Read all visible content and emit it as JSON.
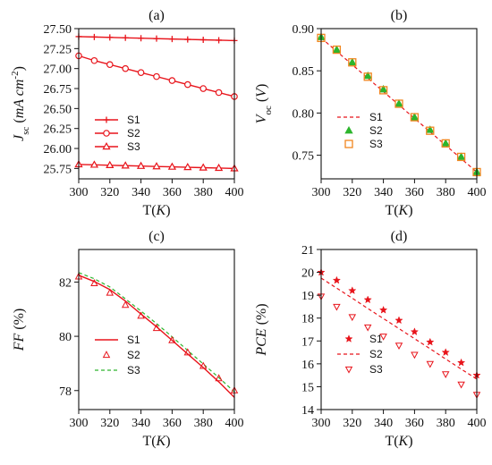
{
  "chart_data": [
    {
      "id": "a",
      "type": "line",
      "panel_label": "(a)",
      "xlabel": "T(K)",
      "xlabel_parts": [
        [
          "T(",
          "normal"
        ],
        [
          "K",
          "italic"
        ],
        [
          ")",
          "normal"
        ]
      ],
      "ylabel": "Jsc (mA cm-2)",
      "ylabel_parts": [
        [
          "J",
          "italic"
        ],
        [
          "sc",
          "sub"
        ],
        [
          " (",
          "normal"
        ],
        [
          "mA cm",
          "italic"
        ],
        [
          "-2",
          "sup"
        ],
        [
          ")",
          "normal"
        ]
      ],
      "xlim": [
        300,
        400
      ],
      "ylim": [
        25.62,
        27.5
      ],
      "xticks": [
        300,
        320,
        340,
        360,
        380,
        400
      ],
      "yticks": [
        25.75,
        26.0,
        26.25,
        26.5,
        26.75,
        27.0,
        27.25,
        27.5
      ],
      "ytick_labels": [
        "25.75",
        "26.00",
        "26.25",
        "26.50",
        "26.75",
        "27.00",
        "27.25",
        "27.50"
      ],
      "legend_position": "lower-left",
      "x": [
        300,
        310,
        320,
        330,
        340,
        350,
        360,
        370,
        380,
        390,
        400
      ],
      "series": [
        {
          "name": "S1",
          "style": "line-marker",
          "marker": "plus",
          "color": "#e8141b",
          "values": [
            27.4,
            27.395,
            27.39,
            27.385,
            27.38,
            27.375,
            27.37,
            27.365,
            27.36,
            27.355,
            27.35
          ]
        },
        {
          "name": "S2",
          "style": "line-marker",
          "marker": "circle",
          "color": "#e8141b",
          "values": [
            27.16,
            27.1,
            27.05,
            27.0,
            26.95,
            26.9,
            26.85,
            26.8,
            26.75,
            26.7,
            26.65
          ]
        },
        {
          "name": "S3",
          "style": "line-marker",
          "marker": "triangle",
          "color": "#e8141b",
          "values": [
            25.8,
            25.795,
            25.79,
            25.785,
            25.78,
            25.775,
            25.77,
            25.765,
            25.76,
            25.755,
            25.75
          ]
        }
      ]
    },
    {
      "id": "b",
      "type": "line",
      "panel_label": "(b)",
      "xlabel": "T(K)",
      "xlabel_parts": [
        [
          "T(",
          "normal"
        ],
        [
          "K",
          "italic"
        ],
        [
          ")",
          "normal"
        ]
      ],
      "ylabel": "Voc (V)",
      "ylabel_parts": [
        [
          "V",
          "italic"
        ],
        [
          "oc",
          "sub"
        ],
        [
          " (",
          "normal"
        ],
        [
          "V",
          "italic"
        ],
        [
          ")",
          "normal"
        ]
      ],
      "xlim": [
        300,
        400
      ],
      "ylim": [
        0.722,
        0.9
      ],
      "xticks": [
        300,
        320,
        340,
        360,
        380,
        400
      ],
      "yticks": [
        0.75,
        0.8,
        0.85,
        0.9
      ],
      "ytick_labels": [
        "0.75",
        "0.80",
        "0.85",
        "0.90"
      ],
      "legend_position": "lower-left",
      "x": [
        300,
        310,
        320,
        330,
        340,
        350,
        360,
        370,
        380,
        390,
        400
      ],
      "series": [
        {
          "name": "S1",
          "style": "dashed-line",
          "color": "#e8141b",
          "values": [
            0.889,
            0.8731,
            0.8572,
            0.8413,
            0.8254,
            0.8095,
            0.7936,
            0.7777,
            0.7618,
            0.7459,
            0.73
          ]
        },
        {
          "name": "S2",
          "style": "marker",
          "marker": "triangle-filled",
          "color": "#2db52d",
          "values": [
            0.89,
            0.875,
            0.86,
            0.844,
            0.828,
            0.811,
            0.795,
            0.78,
            0.764,
            0.748,
            0.73
          ]
        },
        {
          "name": "S3",
          "style": "marker",
          "marker": "square-open",
          "color": "#f0861e",
          "values": [
            0.889,
            0.875,
            0.86,
            0.843,
            0.827,
            0.811,
            0.795,
            0.779,
            0.764,
            0.748,
            0.73
          ]
        }
      ]
    },
    {
      "id": "c",
      "type": "line",
      "panel_label": "(c)",
      "xlabel": "T(K)",
      "xlabel_parts": [
        [
          "T(",
          "normal"
        ],
        [
          "K",
          "italic"
        ],
        [
          ")",
          "normal"
        ]
      ],
      "ylabel": "FF (%)",
      "ylabel_parts": [
        [
          "FF",
          "italic"
        ],
        [
          " (%)",
          "normal"
        ]
      ],
      "xlim": [
        300,
        400
      ],
      "ylim": [
        77.3,
        83.2
      ],
      "xticks": [
        300,
        320,
        340,
        360,
        380,
        400
      ],
      "yticks": [
        78,
        80,
        82
      ],
      "ytick_labels": [
        "78",
        "80",
        "82"
      ],
      "legend_position": "lower-left",
      "x": [
        300,
        310,
        320,
        330,
        340,
        350,
        360,
        370,
        380,
        390,
        400
      ],
      "series": [
        {
          "name": "S1",
          "style": "line",
          "color": "#e8141b",
          "values": [
            82.25,
            82.02,
            81.72,
            81.3,
            80.82,
            80.35,
            79.85,
            79.35,
            78.85,
            78.32,
            77.75
          ]
        },
        {
          "name": "S2",
          "style": "marker",
          "marker": "triangle-open",
          "color": "#e8141b",
          "values": [
            82.2,
            81.95,
            81.6,
            81.15,
            80.75,
            80.3,
            79.85,
            79.4,
            78.9,
            78.45,
            78.0
          ]
        },
        {
          "name": "S3",
          "style": "dashed-line",
          "color": "#2db52d",
          "values": [
            82.35,
            82.12,
            81.82,
            81.38,
            80.93,
            80.47,
            79.98,
            79.48,
            78.98,
            78.48,
            77.95
          ]
        }
      ]
    },
    {
      "id": "d",
      "type": "line",
      "panel_label": "(d)",
      "xlabel": "T(K)",
      "xlabel_parts": [
        [
          "T(",
          "normal"
        ],
        [
          "K",
          "italic"
        ],
        [
          ")",
          "normal"
        ]
      ],
      "ylabel": "PCE (%)",
      "ylabel_parts": [
        [
          "PCE",
          "italic"
        ],
        [
          " (%)",
          "normal"
        ]
      ],
      "xlim": [
        300,
        400
      ],
      "ylim": [
        14,
        21
      ],
      "xticks": [
        300,
        320,
        340,
        360,
        380,
        400
      ],
      "yticks": [
        14,
        15,
        16,
        17,
        18,
        19,
        20,
        21
      ],
      "ytick_labels": [
        "14",
        "15",
        "16",
        "17",
        "18",
        "19",
        "20",
        "21"
      ],
      "legend_position": "lower-left",
      "x": [
        300,
        310,
        320,
        330,
        340,
        350,
        360,
        370,
        380,
        390,
        400
      ],
      "series": [
        {
          "name": "S1",
          "style": "marker",
          "marker": "star",
          "color": "#e8141b",
          "values": [
            20.0,
            19.65,
            19.2,
            18.8,
            18.35,
            17.9,
            17.4,
            16.95,
            16.5,
            16.05,
            15.5
          ]
        },
        {
          "name": "S2",
          "style": "dashed-line",
          "color": "#e8141b",
          "values": [
            19.75,
            19.31,
            18.87,
            18.42,
            17.98,
            17.54,
            17.1,
            16.66,
            16.21,
            15.77,
            15.33
          ]
        },
        {
          "name": "S3",
          "style": "marker",
          "marker": "triangle-down-open",
          "color": "#e8141b",
          "values": [
            18.95,
            18.5,
            18.05,
            17.6,
            17.2,
            16.8,
            16.4,
            16.0,
            15.55,
            15.1,
            14.65
          ]
        }
      ]
    }
  ]
}
